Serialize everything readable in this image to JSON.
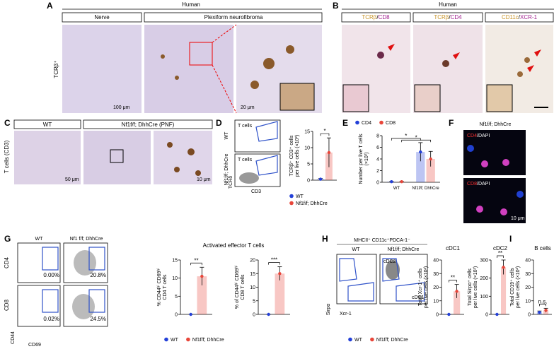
{
  "panels": {
    "A": {
      "label": "A",
      "species": "Human",
      "columns": [
        "Nerve",
        "Plexiform neurofibroma"
      ],
      "row_label": "TCRβ⁺",
      "scale_bars": [
        "100 μm",
        "20 μm"
      ]
    },
    "B": {
      "label": "B",
      "species": "Human",
      "stains": [
        {
          "a": "TCRβ",
          "sep": "/",
          "b": "CD8"
        },
        {
          "a": "TCRβ",
          "sep": "/",
          "b": "CD4"
        },
        {
          "a": "CD11c",
          "sep": "/",
          "b": "XCR-1"
        }
      ]
    },
    "C": {
      "label": "C",
      "row_label": "T cells (CD3)",
      "columns": [
        "WT",
        "Nf1f/f; DhhCre (PNF)"
      ],
      "scale_bars": [
        "50 μm",
        "10 μm"
      ]
    },
    "D": {
      "label": "D",
      "rows": [
        "WT",
        "Nf1f/f; DhhCre"
      ],
      "gate": "T cells",
      "y_axis": "TCRδ",
      "x_axis": "CD3"
    },
    "E": {
      "label": "E"
    },
    "F": {
      "label": "F",
      "title": "Nf1f/f; DhhCre",
      "stains": [
        {
          "a": "CD4",
          "sep": "/",
          "b": "DAPI"
        },
        {
          "a": "CD8",
          "sep": "/",
          "b": "DAPI"
        }
      ],
      "scale_bar": "10 μm"
    },
    "G": {
      "label": "G",
      "columns": [
        "WT",
        "Nf1 f/f; DhhCre"
      ],
      "rows": [
        "CD4",
        "CD8"
      ],
      "y_axis": "CD44",
      "x_axis": "CD69",
      "percentages": [
        "0.00%",
        "20.8%",
        "0.02%",
        "24.5%"
      ],
      "title": "Activated effector T cells"
    },
    "H": {
      "label": "H",
      "gating": "MHCII⁺ CD11c⁺PDCA-1⁻",
      "columns": [
        "WT",
        "Nf1f/f; DhhCre"
      ],
      "gates": [
        "cDC2",
        "cDC1"
      ],
      "y_axis": "Sirpα",
      "x_axis": "Xcr-1"
    },
    "I": {
      "label": "I"
    }
  },
  "chart_data": [
    {
      "type": "bar",
      "y_label": [
        "TCRβ⁺ CD3⁺ cells",
        "per live cells (×10²)"
      ],
      "categories": [
        null
      ],
      "ylim": [
        0,
        15
      ],
      "yticks": [
        0,
        5,
        10,
        15
      ],
      "series": [
        {
          "name": "WT",
          "color": "#2340d8",
          "values": [
            0.3
          ],
          "errors": [
            0.2
          ]
        },
        {
          "name": "Nf1f/f; DhhCre",
          "color": "#e8463a",
          "values": [
            8.5
          ],
          "errors": [
            4.5
          ]
        }
      ],
      "annotations": [
        "*"
      ]
    },
    {
      "type": "bar",
      "y_label": [
        "Number per live T cells",
        "(×10²)"
      ],
      "categories": [
        "WT",
        "Nf1f/f; DhhCre"
      ],
      "ylim": [
        0,
        8
      ],
      "yticks": [
        0,
        2,
        4,
        6,
        8
      ],
      "series": [
        {
          "name": "CD4",
          "color": "#2340d8",
          "values": [
            0.1,
            5.2
          ],
          "errors": [
            0.05,
            1.6
          ]
        },
        {
          "name": "CD8",
          "color": "#e8463a",
          "values": [
            0.1,
            4.0
          ],
          "errors": [
            0.05,
            1.3
          ]
        }
      ],
      "annotations": [
        "*",
        "*"
      ]
    },
    {
      "type": "bar",
      "y_label": [
        "% CD44ʰⁱ CD69ʰⁱ",
        "CD4 T cells"
      ],
      "categories": [
        null
      ],
      "ylim": [
        0,
        15
      ],
      "yticks": [
        0,
        5,
        10,
        15
      ],
      "series": [
        {
          "name": "WT",
          "color": "#2340d8",
          "values": [
            0
          ],
          "errors": [
            0
          ]
        },
        {
          "name": "Nf1f/f; DhhCre",
          "color": "#e8463a",
          "values": [
            10.5
          ],
          "errors": [
            2.5
          ]
        }
      ],
      "annotations": [
        "**"
      ]
    },
    {
      "type": "bar",
      "y_label": [
        "% of CD44ʰⁱ CD69ʰⁱ",
        "CD8 T cells"
      ],
      "categories": [
        null
      ],
      "ylim": [
        0,
        20
      ],
      "yticks": [
        0,
        5,
        10,
        15,
        20
      ],
      "series": [
        {
          "color": "#2340d8",
          "values": [
            0
          ],
          "errors": [
            0
          ]
        },
        {
          "color": "#e8463a",
          "values": [
            15
          ],
          "errors": [
            2.5
          ]
        }
      ],
      "annotations": [
        "***"
      ]
    },
    {
      "type": "bar",
      "title": "cDC1",
      "y_label": [
        "Total Xcr-1⁺ cells",
        "per live cells (×10²)"
      ],
      "categories": [
        null
      ],
      "ylim": [
        0,
        40
      ],
      "yticks": [
        0,
        10,
        20,
        30,
        40
      ],
      "series": [
        {
          "name": "WT",
          "color": "#2340d8",
          "values": [
            0
          ],
          "errors": [
            0
          ]
        },
        {
          "name": "Nf1f/f; DhhCre",
          "color": "#e8463a",
          "values": [
            17
          ],
          "errors": [
            5
          ]
        }
      ],
      "annotations": [
        "**"
      ]
    },
    {
      "type": "bar",
      "title": "cDC2",
      "y_label": [
        "Total Sirpα⁺ cells",
        "per live cells (×10²)"
      ],
      "categories": [
        null
      ],
      "ylim": [
        0,
        300
      ],
      "yticks": [
        0,
        100,
        200,
        300
      ],
      "series": [
        {
          "color": "#2340d8",
          "values": [
            0
          ],
          "errors": [
            0
          ]
        },
        {
          "color": "#e8463a",
          "values": [
            260
          ],
          "errors": [
            40
          ]
        }
      ],
      "annotations": [
        "**"
      ]
    },
    {
      "type": "bar",
      "title": "B cells",
      "y_label": [
        "Total CD19⁺ cells",
        "per live cells (×10²)"
      ],
      "categories": [
        null
      ],
      "ylim": [
        0,
        40
      ],
      "yticks": [
        0,
        10,
        20,
        30,
        40
      ],
      "series": [
        {
          "color": "#2340d8",
          "values": [
            1.5
          ],
          "errors": [
            1
          ]
        },
        {
          "color": "#e8463a",
          "values": [
            3
          ],
          "errors": [
            1.5
          ]
        }
      ],
      "annotations": [
        "n.s."
      ]
    }
  ]
}
